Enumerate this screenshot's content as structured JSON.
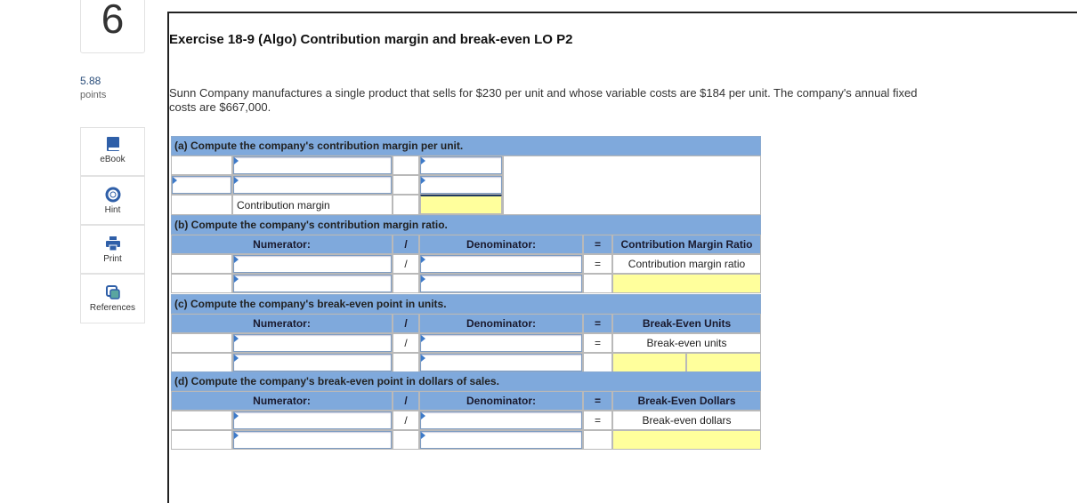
{
  "sidebar": {
    "question_number": "6",
    "points": "5.88",
    "points_label": "points",
    "tools": [
      "eBook",
      "Hint",
      "Print",
      "References"
    ]
  },
  "exercise": {
    "title": "Exercise 18-9 (Algo) Contribution margin and break-even LO P2",
    "description": "Sunn Company manufactures a single product that sells for $230 per unit and whose variable costs are $184 per unit. The company's annual fixed costs are $667,000."
  },
  "sections": [
    {
      "title": "(a) Compute the company's contribution margin per unit.",
      "row_label": "Contribution margin"
    },
    {
      "title": "(b) Compute the company's contribution margin ratio.",
      "numerator": "Numerator:",
      "divide": "/",
      "denominator": "Denominator:",
      "equals": "=",
      "result_header": "Contribution Margin Ratio",
      "result_label": "Contribution margin ratio"
    },
    {
      "title": "(c) Compute the company's break-even point in units.",
      "numerator": "Numerator:",
      "divide": "/",
      "denominator": "Denominator:",
      "equals": "=",
      "result_header": "Break-Even Units",
      "result_label": "Break-even units"
    },
    {
      "title": "(d) Compute the company's break-even point in dollars of sales.",
      "numerator": "Numerator:",
      "divide": "/",
      "denominator": "Denominator:",
      "equals": "=",
      "result_header": "Break-Even Dollars",
      "result_label": "Break-even dollars"
    }
  ]
}
